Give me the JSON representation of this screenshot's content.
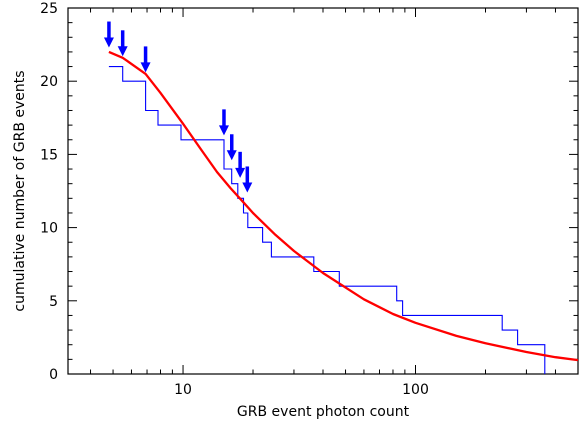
{
  "chart_data": {
    "type": "line",
    "title": "",
    "xlabel": "GRB event photon count",
    "ylabel": "cumulative number of GRB events",
    "x_scale": "log",
    "xlim": [
      3.2,
      500
    ],
    "ylim": [
      0,
      25
    ],
    "grid": false,
    "x_ticks": [
      {
        "value": 10,
        "label": "10"
      },
      {
        "value": 100,
        "label": "100"
      }
    ],
    "y_ticks": [
      {
        "value": 0,
        "label": "0"
      },
      {
        "value": 5,
        "label": "5"
      },
      {
        "value": 10,
        "label": "10"
      },
      {
        "value": 15,
        "label": "15"
      },
      {
        "value": 20,
        "label": "20"
      },
      {
        "value": 25,
        "label": "25"
      }
    ],
    "series": [
      {
        "kind": "step",
        "color": "#0000ff",
        "x": [
          4.8,
          5.5,
          6.9,
          7.8,
          9.8,
          15,
          16.2,
          17.2,
          18.2,
          19,
          22,
          24,
          36.5,
          47,
          83,
          88,
          236,
          275,
          360
        ],
        "y": [
          21,
          20,
          18,
          17,
          16,
          14,
          13,
          12,
          11,
          10,
          9,
          8,
          7,
          6,
          5,
          4,
          3,
          2,
          0
        ]
      },
      {
        "kind": "smooth",
        "color": "#ff0000",
        "x": [
          4.8,
          5.5,
          6.9,
          8,
          10,
          12,
          14,
          16,
          18,
          20,
          25,
          30,
          40,
          60,
          80,
          100,
          150,
          200,
          300,
          400,
          500
        ],
        "y": [
          22,
          21.6,
          20.5,
          19.2,
          17.1,
          15.3,
          13.8,
          12.7,
          11.8,
          11.0,
          9.5,
          8.4,
          6.9,
          5.1,
          4.1,
          3.5,
          2.6,
          2.1,
          1.5,
          1.15,
          0.95
        ]
      }
    ],
    "markers": {
      "color": "#0000ff",
      "shape": "down-arrow",
      "points": [
        {
          "x": 4.8,
          "y": 22.3
        },
        {
          "x": 5.5,
          "y": 21.7
        },
        {
          "x": 6.9,
          "y": 20.6
        },
        {
          "x": 15,
          "y": 16.3
        },
        {
          "x": 16.2,
          "y": 14.6
        },
        {
          "x": 17.6,
          "y": 13.4
        },
        {
          "x": 18.9,
          "y": 12.4
        }
      ]
    }
  }
}
